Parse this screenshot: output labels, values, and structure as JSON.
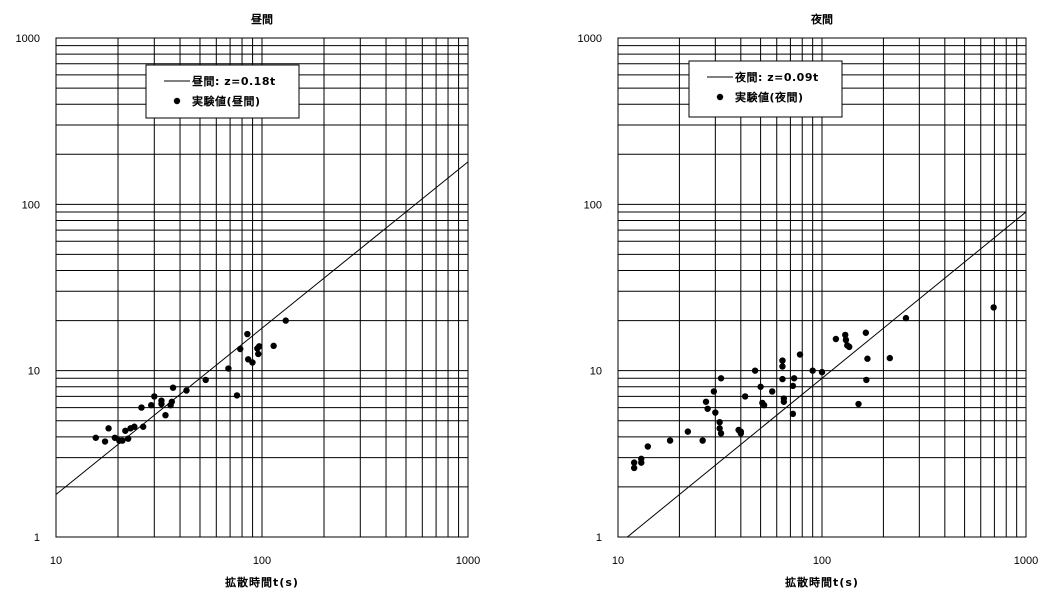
{
  "chart_data": [
    {
      "type": "scatter",
      "title": "昼間",
      "xlabel": "拡散時間t(s)",
      "ylabel": "",
      "xscale": "log",
      "yscale": "log",
      "xlim": [
        10,
        1000
      ],
      "ylim": [
        1,
        1000
      ],
      "x_ticks": [
        "10",
        "100",
        "1000"
      ],
      "y_ticks": [
        "1",
        "10",
        "100",
        "1000"
      ],
      "grid": true,
      "legend_position": "top-left",
      "line": {
        "name": "昼間:  z=0.18t",
        "coef": 0.18
      },
      "series": [
        {
          "name": "実験値(昼間)",
          "x": [
            15.6,
            17.3,
            18,
            19.3,
            20.3,
            21,
            21.7,
            22.4,
            23,
            24,
            26,
            26.5,
            29,
            30,
            32.5,
            32.5,
            34,
            36,
            36.5,
            37,
            43,
            53.3,
            68.7,
            75.6,
            78.4,
            84.9,
            85.7,
            89.9,
            94.9,
            95.9,
            96.9,
            113.9,
            130.4
          ],
          "y": [
            3.95,
            3.75,
            4.5,
            3.95,
            3.8,
            3.8,
            4.35,
            3.9,
            4.5,
            4.6,
            6.0,
            4.6,
            6.2,
            7.0,
            6.3,
            6.6,
            5.4,
            6.2,
            6.5,
            7.9,
            7.6,
            8.8,
            10.3,
            7.1,
            13.5,
            16.6,
            11.7,
            11.2,
            13.6,
            12.6,
            14.0,
            14.1,
            20.0
          ]
        }
      ]
    },
    {
      "type": "scatter",
      "title": "夜間",
      "xlabel": "拡散時間t(s)",
      "ylabel": "",
      "xscale": "log",
      "yscale": "log",
      "xlim": [
        10,
        1000
      ],
      "ylim": [
        1,
        1000
      ],
      "x_ticks": [
        "10",
        "100",
        "1000"
      ],
      "y_ticks": [
        "1",
        "10",
        "100",
        "1000"
      ],
      "grid": true,
      "legend_position": "top-left",
      "line": {
        "name": "夜間:  z=0.09t",
        "coef": 0.09
      },
      "series": [
        {
          "name": "実験値(夜間)",
          "x": [
            12,
            12,
            13,
            13,
            14,
            18,
            22,
            26,
            27,
            27.5,
            29.5,
            30,
            31.5,
            31.5,
            32,
            32,
            39,
            40,
            40,
            42,
            47,
            50,
            51,
            52,
            57,
            64,
            64,
            64,
            65,
            65,
            72,
            72,
            73,
            78,
            90,
            100,
            117,
            130,
            131,
            133,
            136,
            151,
            164,
            165,
            167,
            215,
            258,
            694
          ],
          "y": [
            2.8,
            2.6,
            2.95,
            2.8,
            3.5,
            3.8,
            4.3,
            3.8,
            6.5,
            5.9,
            7.5,
            5.6,
            4.9,
            4.5,
            4.2,
            9.0,
            4.4,
            4.3,
            4.2,
            7.0,
            10.0,
            8.0,
            6.4,
            6.2,
            7.5,
            11.5,
            10.6,
            8.9,
            6.8,
            6.5,
            5.5,
            8.1,
            9.0,
            12.5,
            10.0,
            9.8,
            15.5,
            16.4,
            15.3,
            14.2,
            13.9,
            6.3,
            16.9,
            8.8,
            11.8,
            11.9,
            20.7,
            24.0
          ]
        }
      ]
    }
  ],
  "icons": {
    "marker": "filled-circle-marker",
    "line_swatch": "line-sample-icon"
  }
}
